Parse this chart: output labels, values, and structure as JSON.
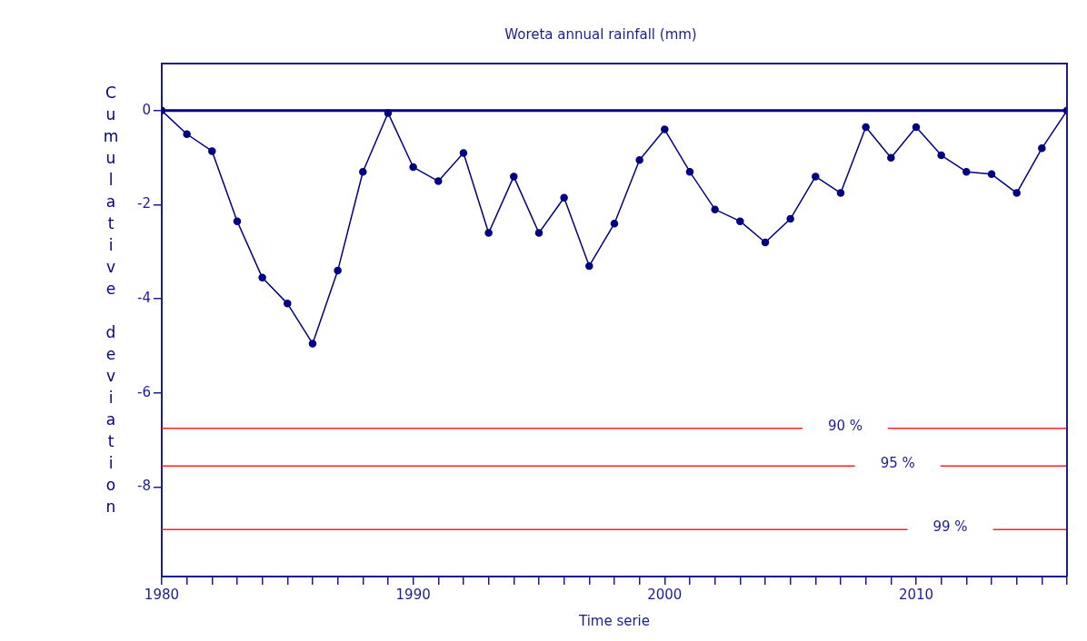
{
  "chart_data": {
    "type": "line",
    "title": "Woreta annual rainfall (mm)",
    "xlabel": "Time serie",
    "ylabel": "Cumulative deviation",
    "x": [
      1980,
      1981,
      1982,
      1983,
      1984,
      1985,
      1986,
      1987,
      1988,
      1989,
      1990,
      1991,
      1992,
      1993,
      1994,
      1995,
      1996,
      1997,
      1998,
      1999,
      2000,
      2001,
      2002,
      2003,
      2004,
      2005,
      2006,
      2007,
      2008,
      2009,
      2010,
      2011,
      2012,
      2013,
      2014,
      2015,
      2016
    ],
    "series": [
      {
        "color": "#000080",
        "values": [
          0,
          -0.5,
          -0.86,
          -2.35,
          -3.55,
          -4.1,
          -4.95,
          -3.4,
          -1.3,
          -0.05,
          -1.2,
          -1.5,
          -0.9,
          -2.6,
          -1.4,
          -2.6,
          -1.85,
          -3.3,
          -2.4,
          -1.05,
          -0.4,
          -1.3,
          -2.1,
          -2.35,
          -2.8,
          -2.3,
          -1.4,
          -1.75,
          -0.35,
          -1.0,
          -0.35,
          -0.95,
          -1.3,
          -1.35,
          -1.75,
          -0.8,
          0
        ]
      }
    ],
    "xlim": [
      1980,
      2016
    ],
    "xticks": [
      1980,
      {
        "value": 1981,
        "label": null
      },
      {
        "value": 1982,
        "label": null
      },
      {
        "value": 1983,
        "label": null
      },
      {
        "value": 1984,
        "label": null
      },
      {
        "value": 1985,
        "label": null
      },
      {
        "value": 1986,
        "label": null
      },
      {
        "value": 1987,
        "label": null
      },
      {
        "value": 1988,
        "label": null
      },
      {
        "value": 1989,
        "label": null
      },
      1990,
      {
        "value": 1991,
        "label": null
      },
      {
        "value": 1992,
        "label": null
      },
      {
        "value": 1993,
        "label": null
      },
      {
        "value": 1994,
        "label": null
      },
      {
        "value": 1995,
        "label": null
      },
      {
        "value": 1996,
        "label": null
      },
      {
        "value": 1997,
        "label": null
      },
      {
        "value": 1998,
        "label": null
      },
      {
        "value": 1999,
        "label": null
      },
      2000,
      {
        "value": 2001,
        "label": null
      },
      {
        "value": 2002,
        "label": null
      },
      {
        "value": 2003,
        "label": null
      },
      {
        "value": 2004,
        "label": null
      },
      {
        "value": 2005,
        "label": null
      },
      {
        "value": 2006,
        "label": null
      },
      {
        "value": 2007,
        "label": null
      },
      {
        "value": 2008,
        "label": null
      },
      {
        "value": 2009,
        "label": null
      },
      2010,
      {
        "value": 2011,
        "label": null
      },
      {
        "value": 2012,
        "label": null
      },
      {
        "value": 2013,
        "label": null
      },
      {
        "value": 2014,
        "label": null
      },
      {
        "value": 2015,
        "label": null
      },
      {
        "value": 2016,
        "label": null
      }
    ],
    "ylim": [
      -9.9,
      1
    ],
    "yticks": [
      0,
      -2,
      -4,
      -6,
      -8
    ],
    "marker": "circle",
    "line_style": "solid",
    "ref_lines": [
      {
        "axis": "y",
        "value": 0,
        "color": "#000080"
      },
      {
        "axis": "y",
        "value": -6.75,
        "color": "#ff2020"
      },
      {
        "axis": "y",
        "value": -7.55,
        "color": "#ff2020"
      },
      {
        "axis": "y",
        "value": -8.9,
        "color": "#ff2020"
      }
    ],
    "annotations": [
      "90 %",
      "95 %",
      "99 %"
    ]
  }
}
